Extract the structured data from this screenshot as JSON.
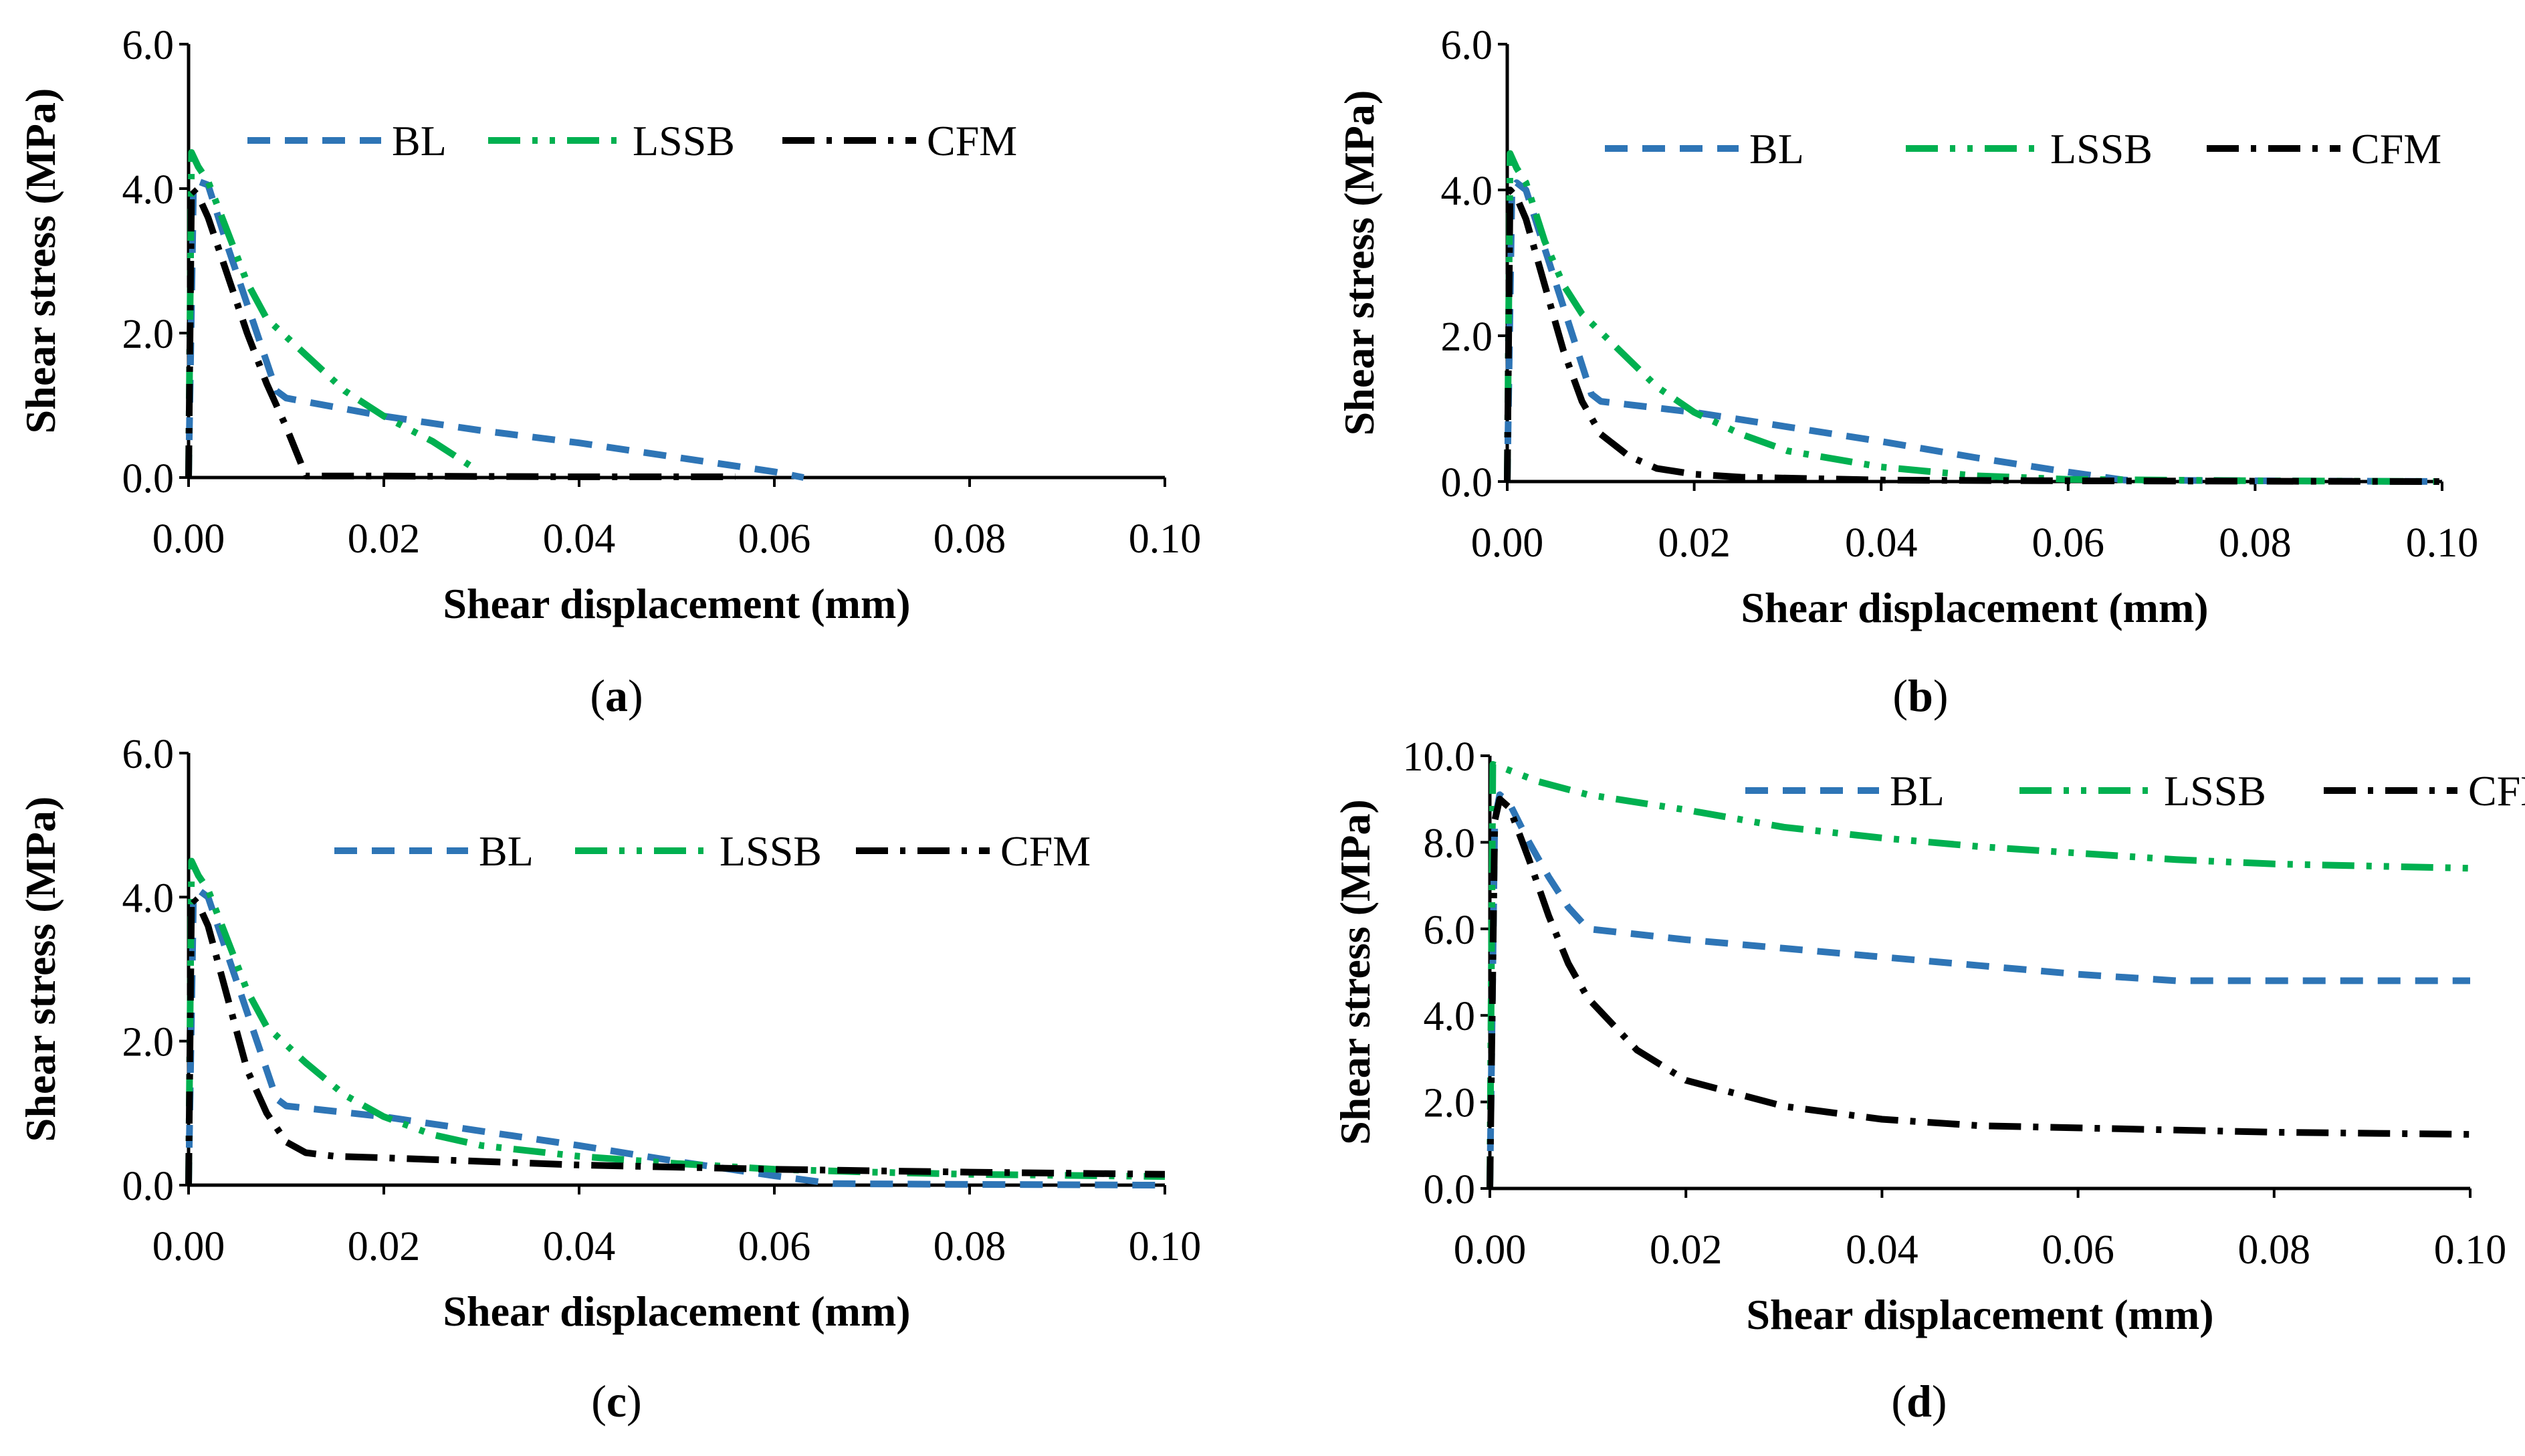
{
  "figure": {
    "xlabel": "Shear displacement (mm)",
    "ylabel": "Shear stress (MPa)",
    "colors": {
      "BL": "#2e75b6",
      "LSSB": "#00b050",
      "CFM": "#000000",
      "axis": "#000000"
    },
    "legend_labels": [
      "BL",
      "LSSB",
      "CFM"
    ]
  },
  "chart_data": [
    {
      "id": "a",
      "caption": "a",
      "type": "line",
      "xlabel": "Shear displacement (mm)",
      "ylabel": "Shear stress (MPa)",
      "xlim": [
        0,
        0.1
      ],
      "ylim": [
        0,
        6
      ],
      "xticks": [
        "0.00",
        "0.02",
        "0.04",
        "0.06",
        "0.08",
        "0.10"
      ],
      "yticks": [
        "0.0",
        "2.0",
        "4.0",
        "6.0"
      ],
      "legend": [
        "BL",
        "LSSB",
        "CFM"
      ],
      "series": [
        {
          "name": "BL",
          "points": [
            [
              0,
              0
            ],
            [
              0.0005,
              4.0
            ],
            [
              0.001,
              4.1
            ],
            [
              0.002,
              4.05
            ],
            [
              0.004,
              3.2
            ],
            [
              0.006,
              2.4
            ],
            [
              0.009,
              1.2
            ],
            [
              0.01,
              1.1
            ],
            [
              0.02,
              0.85
            ],
            [
              0.03,
              0.65
            ],
            [
              0.04,
              0.48
            ],
            [
              0.05,
              0.28
            ],
            [
              0.06,
              0.08
            ],
            [
              0.063,
              0.0
            ]
          ]
        },
        {
          "name": "LSSB",
          "points": [
            [
              0,
              0
            ],
            [
              0.0003,
              4.5
            ],
            [
              0.001,
              4.3
            ],
            [
              0.002,
              4.1
            ],
            [
              0.004,
              3.4
            ],
            [
              0.006,
              2.7
            ],
            [
              0.008,
              2.2
            ],
            [
              0.012,
              1.7
            ],
            [
              0.016,
              1.2
            ],
            [
              0.02,
              0.85
            ],
            [
              0.025,
              0.5
            ],
            [
              0.029,
              0.15
            ]
          ]
        },
        {
          "name": "CFM",
          "points": [
            [
              0,
              0
            ],
            [
              0.0003,
              4.0
            ],
            [
              0.001,
              3.9
            ],
            [
              0.002,
              3.6
            ],
            [
              0.004,
              2.8
            ],
            [
              0.006,
              2.0
            ],
            [
              0.008,
              1.3
            ],
            [
              0.01,
              0.7
            ],
            [
              0.0115,
              0.2
            ],
            [
              0.012,
              0.02
            ],
            [
              0.02,
              0.02
            ],
            [
              0.04,
              0.01
            ],
            [
              0.056,
              0.01
            ]
          ]
        }
      ]
    },
    {
      "id": "b",
      "caption": "b",
      "type": "line",
      "xlabel": "Shear displacement (mm)",
      "ylabel": "Shear stress (MPa)",
      "xlim": [
        0,
        0.1
      ],
      "ylim": [
        0,
        6
      ],
      "xticks": [
        "0.00",
        "0.02",
        "0.04",
        "0.06",
        "0.08",
        "0.10"
      ],
      "yticks": [
        "0.0",
        "2.0",
        "4.0",
        "6.0"
      ],
      "legend": [
        "BL",
        "LSSB",
        "CFM"
      ],
      "series": [
        {
          "name": "BL",
          "points": [
            [
              0,
              0
            ],
            [
              0.0005,
              4.0
            ],
            [
              0.001,
              4.1
            ],
            [
              0.002,
              4.0
            ],
            [
              0.004,
              3.2
            ],
            [
              0.006,
              2.4
            ],
            [
              0.009,
              1.2
            ],
            [
              0.01,
              1.1
            ],
            [
              0.02,
              0.95
            ],
            [
              0.03,
              0.75
            ],
            [
              0.04,
              0.55
            ],
            [
              0.05,
              0.33
            ],
            [
              0.06,
              0.13
            ],
            [
              0.066,
              0.02
            ],
            [
              0.08,
              0.01
            ],
            [
              0.1,
              0.0
            ]
          ]
        },
        {
          "name": "LSSB",
          "points": [
            [
              0,
              0
            ],
            [
              0.0003,
              4.5
            ],
            [
              0.001,
              4.3
            ],
            [
              0.002,
              4.1
            ],
            [
              0.004,
              3.3
            ],
            [
              0.006,
              2.7
            ],
            [
              0.008,
              2.3
            ],
            [
              0.012,
              1.8
            ],
            [
              0.016,
              1.3
            ],
            [
              0.02,
              0.95
            ],
            [
              0.025,
              0.65
            ],
            [
              0.03,
              0.42
            ],
            [
              0.04,
              0.2
            ],
            [
              0.05,
              0.08
            ],
            [
              0.06,
              0.03
            ],
            [
              0.08,
              0.01
            ],
            [
              0.1,
              0.0
            ]
          ]
        },
        {
          "name": "CFM",
          "points": [
            [
              0,
              0
            ],
            [
              0.0003,
              4.0
            ],
            [
              0.001,
              3.9
            ],
            [
              0.002,
              3.6
            ],
            [
              0.004,
              2.7
            ],
            [
              0.006,
              1.8
            ],
            [
              0.008,
              1.1
            ],
            [
              0.01,
              0.65
            ],
            [
              0.013,
              0.35
            ],
            [
              0.016,
              0.18
            ],
            [
              0.02,
              0.1
            ],
            [
              0.025,
              0.06
            ],
            [
              0.04,
              0.02
            ],
            [
              0.06,
              0.01
            ],
            [
              0.1,
              0.0
            ]
          ]
        }
      ]
    },
    {
      "id": "c",
      "caption": "c",
      "type": "line",
      "xlabel": "Shear displacement (mm)",
      "ylabel": "Shear stress (MPa)",
      "xlim": [
        0,
        0.1
      ],
      "ylim": [
        0,
        6
      ],
      "xticks": [
        "0.00",
        "0.02",
        "0.04",
        "0.06",
        "0.08",
        "0.10"
      ],
      "yticks": [
        "0.0",
        "2.0",
        "4.0",
        "6.0"
      ],
      "legend": [
        "BL",
        "LSSB",
        "CFM"
      ],
      "series": [
        {
          "name": "BL",
          "points": [
            [
              0,
              0
            ],
            [
              0.0005,
              4.0
            ],
            [
              0.001,
              4.1
            ],
            [
              0.002,
              4.0
            ],
            [
              0.004,
              3.2
            ],
            [
              0.006,
              2.4
            ],
            [
              0.009,
              1.2
            ],
            [
              0.01,
              1.1
            ],
            [
              0.02,
              0.95
            ],
            [
              0.03,
              0.75
            ],
            [
              0.04,
              0.55
            ],
            [
              0.05,
              0.33
            ],
            [
              0.06,
              0.13
            ],
            [
              0.066,
              0.02
            ],
            [
              0.08,
              0.01
            ],
            [
              0.1,
              0.0
            ]
          ]
        },
        {
          "name": "LSSB",
          "points": [
            [
              0,
              0
            ],
            [
              0.0003,
              4.5
            ],
            [
              0.001,
              4.3
            ],
            [
              0.002,
              4.1
            ],
            [
              0.004,
              3.4
            ],
            [
              0.006,
              2.7
            ],
            [
              0.008,
              2.2
            ],
            [
              0.012,
              1.7
            ],
            [
              0.016,
              1.25
            ],
            [
              0.02,
              0.95
            ],
            [
              0.025,
              0.7
            ],
            [
              0.03,
              0.55
            ],
            [
              0.04,
              0.4
            ],
            [
              0.05,
              0.3
            ],
            [
              0.06,
              0.22
            ],
            [
              0.07,
              0.18
            ],
            [
              0.08,
              0.15
            ],
            [
              0.1,
              0.12
            ]
          ]
        },
        {
          "name": "CFM",
          "points": [
            [
              0,
              0
            ],
            [
              0.0003,
              4.0
            ],
            [
              0.001,
              3.9
            ],
            [
              0.002,
              3.6
            ],
            [
              0.004,
              2.6
            ],
            [
              0.006,
              1.6
            ],
            [
              0.008,
              1.0
            ],
            [
              0.01,
              0.6
            ],
            [
              0.012,
              0.45
            ],
            [
              0.015,
              0.4
            ],
            [
              0.02,
              0.38
            ],
            [
              0.03,
              0.33
            ],
            [
              0.04,
              0.28
            ],
            [
              0.05,
              0.25
            ],
            [
              0.06,
              0.22
            ],
            [
              0.07,
              0.2
            ],
            [
              0.08,
              0.18
            ],
            [
              0.1,
              0.15
            ]
          ]
        }
      ]
    },
    {
      "id": "d",
      "caption": "d",
      "type": "line",
      "xlabel": "Shear displacement (mm)",
      "ylabel": "Shear stress (MPa)",
      "xlim": [
        0,
        0.1
      ],
      "ylim": [
        0,
        10
      ],
      "xticks": [
        "0.00",
        "0.02",
        "0.04",
        "0.06",
        "0.08",
        "0.10"
      ],
      "yticks": [
        "0.0",
        "2.0",
        "4.0",
        "6.0",
        "8.0",
        "10.0"
      ],
      "legend": [
        "BL",
        "LSSB",
        "CFM"
      ],
      "series": [
        {
          "name": "BL",
          "points": [
            [
              0,
              0
            ],
            [
              0.0005,
              8.5
            ],
            [
              0.001,
              9.1
            ],
            [
              0.002,
              8.9
            ],
            [
              0.004,
              8.0
            ],
            [
              0.006,
              7.2
            ],
            [
              0.008,
              6.5
            ],
            [
              0.01,
              6.0
            ],
            [
              0.02,
              5.75
            ],
            [
              0.03,
              5.55
            ],
            [
              0.04,
              5.35
            ],
            [
              0.05,
              5.15
            ],
            [
              0.06,
              4.95
            ],
            [
              0.07,
              4.8
            ],
            [
              0.08,
              4.8
            ],
            [
              0.1,
              4.8
            ]
          ]
        },
        {
          "name": "LSSB",
          "points": [
            [
              0,
              0
            ],
            [
              0.0003,
              9.8
            ],
            [
              0.001,
              9.75
            ],
            [
              0.005,
              9.4
            ],
            [
              0.01,
              9.1
            ],
            [
              0.02,
              8.75
            ],
            [
              0.03,
              8.35
            ],
            [
              0.04,
              8.1
            ],
            [
              0.05,
              7.9
            ],
            [
              0.06,
              7.75
            ],
            [
              0.07,
              7.6
            ],
            [
              0.08,
              7.5
            ],
            [
              0.09,
              7.45
            ],
            [
              0.1,
              7.4
            ]
          ]
        },
        {
          "name": "CFM",
          "points": [
            [
              0,
              0
            ],
            [
              0.0005,
              8.5
            ],
            [
              0.001,
              9.0
            ],
            [
              0.002,
              8.8
            ],
            [
              0.004,
              7.6
            ],
            [
              0.006,
              6.3
            ],
            [
              0.008,
              5.2
            ],
            [
              0.01,
              4.4
            ],
            [
              0.015,
              3.2
            ],
            [
              0.02,
              2.5
            ],
            [
              0.03,
              1.9
            ],
            [
              0.04,
              1.6
            ],
            [
              0.05,
              1.45
            ],
            [
              0.06,
              1.4
            ],
            [
              0.08,
              1.3
            ],
            [
              0.1,
              1.25
            ]
          ]
        }
      ]
    }
  ]
}
